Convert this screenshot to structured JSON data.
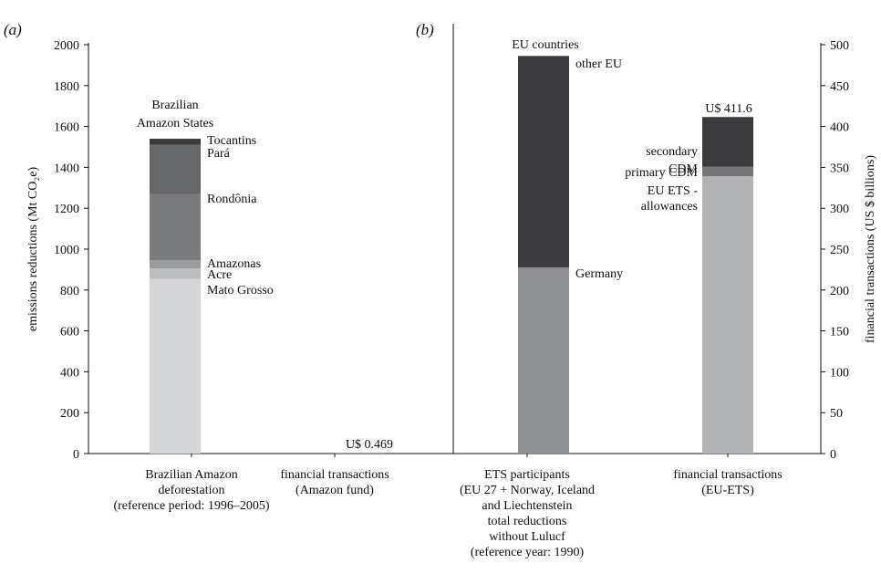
{
  "chart_data": {
    "type": "bar",
    "stacked": true,
    "panels": [
      "(a)",
      "(b)"
    ],
    "left_axis": {
      "label": "emissions reductions (Mt CO₂e)",
      "ylim": [
        0,
        2000
      ],
      "ticks": [
        0,
        200,
        400,
        600,
        800,
        1000,
        1200,
        1400,
        1600,
        1800,
        2000
      ]
    },
    "right_axis": {
      "label": "financial transactions (US $ billions)",
      "ylim": [
        0,
        500
      ],
      "ticks": [
        0,
        50,
        100,
        150,
        200,
        250,
        300,
        350,
        400,
        450,
        500
      ]
    },
    "categories": [
      {
        "label": [
          "Brazilian Amazon",
          "deforestation",
          "(reference period: 1996–2005)"
        ],
        "axis": "left",
        "group_title": [
          "Brazilian",
          "Amazon States"
        ],
        "segments": [
          {
            "name": "Mato Grosso",
            "value": 855,
            "color": "#d4d5d7"
          },
          {
            "name": "Acre",
            "value": 50,
            "color": "#bdbec0"
          },
          {
            "name": "Amazonas",
            "value": 40,
            "color": "#999a9c"
          },
          {
            "name": "Rondônia",
            "value": 325,
            "color": "#7a7b7d"
          },
          {
            "name": "Pará",
            "value": 240,
            "color": "#666769"
          },
          {
            "name": "Tocantins",
            "value": 30,
            "color": "#3a3a3c"
          }
        ]
      },
      {
        "label": [
          "financial transactions",
          "(Amazon fund)"
        ],
        "axis": "right",
        "value_label": "U$ 0.469",
        "segments": [
          {
            "name": "Amazon fund",
            "value": 0.469,
            "color": "#555555"
          }
        ]
      },
      {
        "label": [
          "ETS participants",
          "(EU 27 + Norway, Iceland",
          "and Liechtenstein",
          "total reductions",
          "without Lulucf",
          "(reference year: 1990)"
        ],
        "axis": "left",
        "group_title": [
          "EU countries"
        ],
        "segments": [
          {
            "name": "Germany",
            "value": 910,
            "color": "#8f9092"
          },
          {
            "name": "other EU",
            "value": 1035,
            "color": "#3c3c3e"
          }
        ]
      },
      {
        "label": [
          "financial transactions",
          "(EU-ETS)"
        ],
        "axis": "right",
        "value_label": "U$ 411.6",
        "segments": [
          {
            "name": [
              "EU ETS -",
              "allowances"
            ],
            "value": 339,
            "color": "#b2b3b5"
          },
          {
            "name": [
              "primary CDM"
            ],
            "value": 12,
            "color": "#757678"
          },
          {
            "name": [
              "secondary",
              "CDM"
            ],
            "value": 60.6,
            "color": "#3c3c3e"
          }
        ]
      }
    ]
  }
}
